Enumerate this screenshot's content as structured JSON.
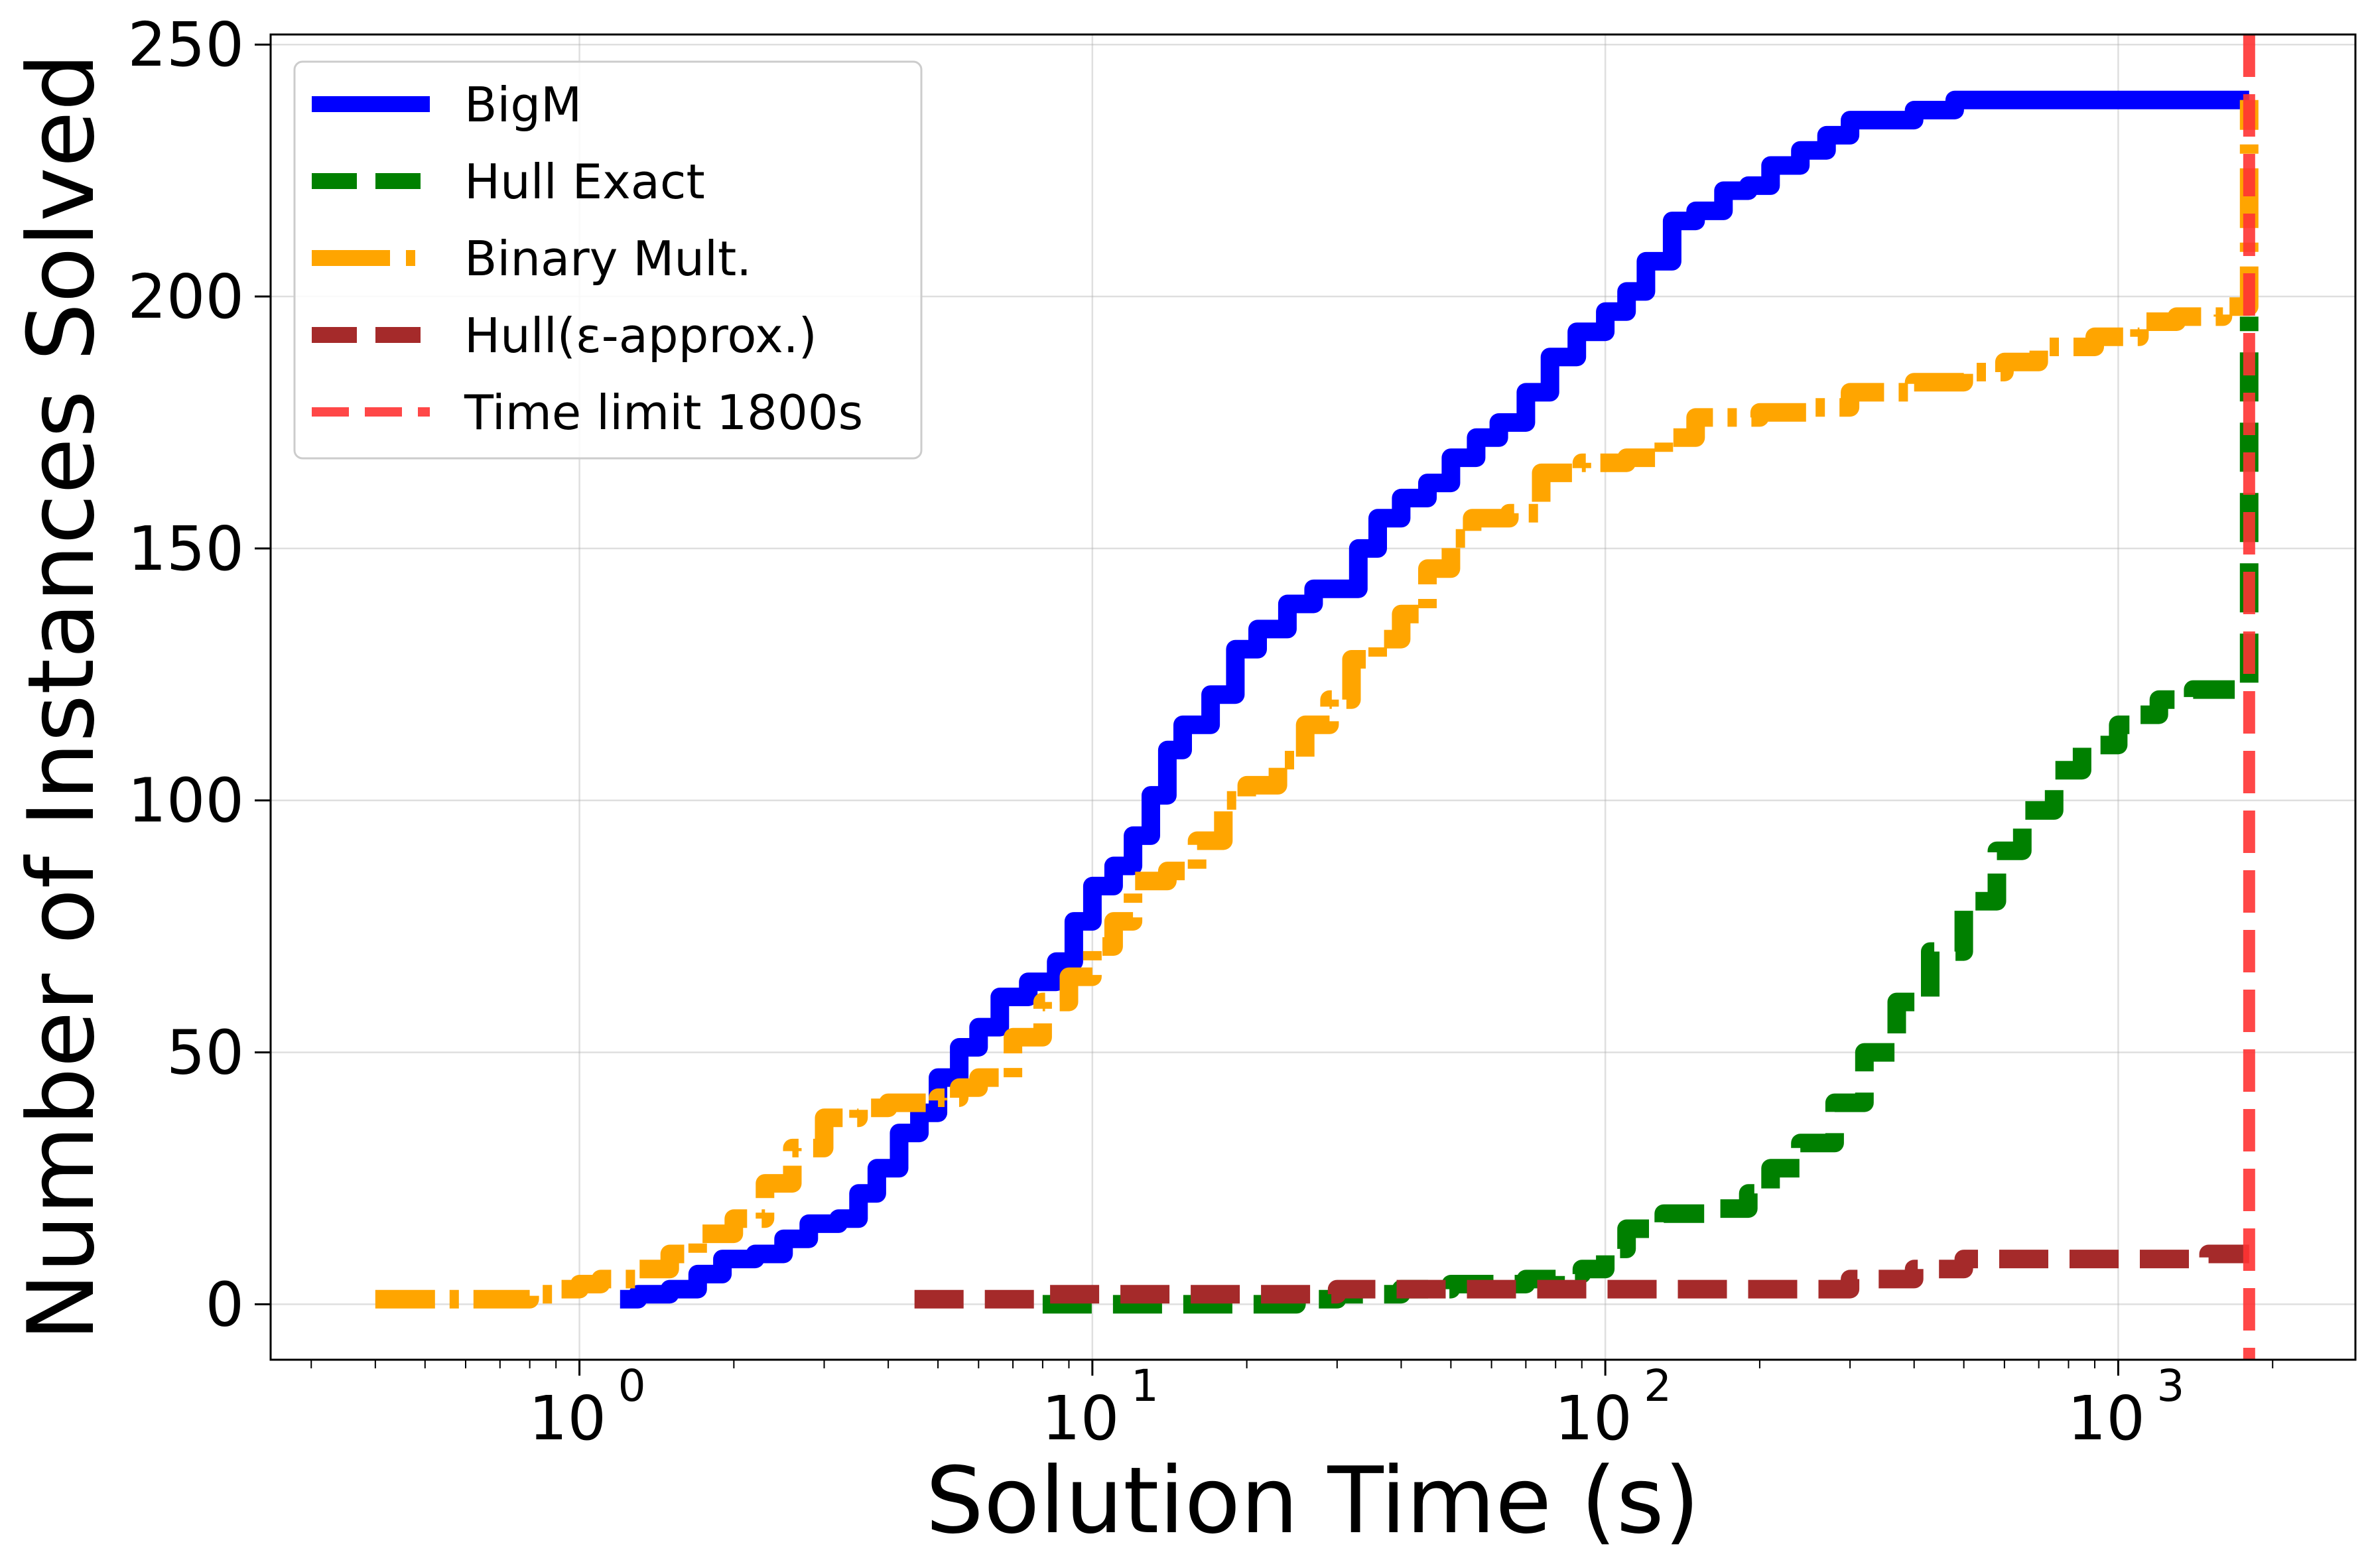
{
  "chart_data": {
    "type": "line",
    "title": "",
    "xlabel": "Solution Time (s)",
    "ylabel": "Number of Instances Solved",
    "xscale": "log",
    "xlim": [
      0.25,
      2900
    ],
    "ylim": [
      -11,
      252
    ],
    "grid": true,
    "legend_position": "top-left",
    "x_ticks": [
      {
        "value": 1,
        "base": "10",
        "exp": "0"
      },
      {
        "value": 10,
        "base": "10",
        "exp": "1"
      },
      {
        "value": 100,
        "base": "10",
        "exp": "2"
      },
      {
        "value": 1000,
        "base": "10",
        "exp": "3"
      }
    ],
    "y_ticks": [
      {
        "value": 0,
        "label": "0"
      },
      {
        "value": 50,
        "label": "50"
      },
      {
        "value": 100,
        "label": "100"
      },
      {
        "value": 150,
        "label": "150"
      },
      {
        "value": 200,
        "label": "200"
      },
      {
        "value": 250,
        "label": "250"
      }
    ],
    "series": [
      {
        "name": "BigM",
        "color": "#0000ff",
        "style": "solid",
        "points": [
          [
            1.2,
            1
          ],
          [
            1.3,
            2
          ],
          [
            1.5,
            3
          ],
          [
            1.7,
            6
          ],
          [
            1.9,
            9
          ],
          [
            2.2,
            10
          ],
          [
            2.5,
            13
          ],
          [
            2.8,
            16
          ],
          [
            3.2,
            17
          ],
          [
            3.5,
            22
          ],
          [
            3.8,
            27
          ],
          [
            4.2,
            34
          ],
          [
            4.6,
            38
          ],
          [
            5.0,
            45
          ],
          [
            5.5,
            51
          ],
          [
            6.0,
            55
          ],
          [
            6.6,
            61
          ],
          [
            7.5,
            64
          ],
          [
            8.5,
            68
          ],
          [
            9.2,
            76
          ],
          [
            10,
            83
          ],
          [
            11,
            87
          ],
          [
            12,
            93
          ],
          [
            13,
            101
          ],
          [
            14,
            110
          ],
          [
            15,
            115
          ],
          [
            17,
            121
          ],
          [
            19,
            130
          ],
          [
            21,
            134
          ],
          [
            24,
            139
          ],
          [
            27,
            142
          ],
          [
            30,
            142
          ],
          [
            33,
            150
          ],
          [
            36,
            156
          ],
          [
            40,
            160
          ],
          [
            45,
            163
          ],
          [
            50,
            168
          ],
          [
            56,
            172
          ],
          [
            62,
            175
          ],
          [
            70,
            181
          ],
          [
            78,
            188
          ],
          [
            88,
            193
          ],
          [
            100,
            197
          ],
          [
            110,
            201
          ],
          [
            120,
            207
          ],
          [
            135,
            215
          ],
          [
            150,
            217
          ],
          [
            170,
            221
          ],
          [
            190,
            222
          ],
          [
            210,
            226
          ],
          [
            240,
            229
          ],
          [
            270,
            232
          ],
          [
            300,
            235
          ],
          [
            350,
            235
          ],
          [
            400,
            237
          ],
          [
            480,
            239
          ],
          [
            700,
            239
          ],
          [
            1000,
            239
          ],
          [
            1600,
            239
          ],
          [
            1800,
            239
          ]
        ]
      },
      {
        "name": "Hull Exact",
        "color": "#008000",
        "style": "dashed",
        "points": [
          [
            8,
            0
          ],
          [
            12,
            0
          ],
          [
            15,
            0
          ],
          [
            20,
            0
          ],
          [
            25,
            1
          ],
          [
            30,
            2
          ],
          [
            40,
            3
          ],
          [
            50,
            4
          ],
          [
            60,
            4
          ],
          [
            70,
            5
          ],
          [
            80,
            6
          ],
          [
            90,
            7
          ],
          [
            100,
            11
          ],
          [
            110,
            15
          ],
          [
            130,
            18
          ],
          [
            160,
            19
          ],
          [
            190,
            22
          ],
          [
            210,
            27
          ],
          [
            240,
            32
          ],
          [
            280,
            40
          ],
          [
            320,
            50
          ],
          [
            370,
            60
          ],
          [
            430,
            70
          ],
          [
            500,
            80
          ],
          [
            580,
            90
          ],
          [
            650,
            98
          ],
          [
            750,
            106
          ],
          [
            850,
            111
          ],
          [
            1000,
            115
          ],
          [
            1100,
            117
          ],
          [
            1200,
            120
          ],
          [
            1400,
            122
          ],
          [
            1700,
            122
          ],
          [
            1800,
            122
          ],
          [
            1800,
            196
          ]
        ]
      },
      {
        "name": "Binary Mult.",
        "color": "#ffa500",
        "style": "dashdot",
        "points": [
          [
            0.4,
            1
          ],
          [
            0.6,
            1
          ],
          [
            0.8,
            2
          ],
          [
            0.9,
            3
          ],
          [
            1.0,
            4
          ],
          [
            1.1,
            5
          ],
          [
            1.3,
            7
          ],
          [
            1.5,
            10
          ],
          [
            1.7,
            14
          ],
          [
            2.0,
            17
          ],
          [
            2.3,
            24
          ],
          [
            2.6,
            31
          ],
          [
            3.0,
            37
          ],
          [
            3.5,
            39
          ],
          [
            4.0,
            40
          ],
          [
            4.5,
            40
          ],
          [
            5.0,
            41
          ],
          [
            5.5,
            43
          ],
          [
            6.0,
            45
          ],
          [
            7.0,
            53
          ],
          [
            8.0,
            60
          ],
          [
            9.0,
            65
          ],
          [
            10,
            71
          ],
          [
            11,
            76
          ],
          [
            12,
            84
          ],
          [
            14,
            86
          ],
          [
            16,
            92
          ],
          [
            18,
            100
          ],
          [
            20,
            103
          ],
          [
            23,
            108
          ],
          [
            26,
            115
          ],
          [
            29,
            120
          ],
          [
            32,
            128
          ],
          [
            36,
            132
          ],
          [
            40,
            137
          ],
          [
            45,
            146
          ],
          [
            50,
            152
          ],
          [
            55,
            156
          ],
          [
            65,
            157
          ],
          [
            75,
            165
          ],
          [
            90,
            167
          ],
          [
            110,
            168
          ],
          [
            130,
            172
          ],
          [
            150,
            176
          ],
          [
            200,
            177
          ],
          [
            250,
            178
          ],
          [
            300,
            181
          ],
          [
            400,
            183
          ],
          [
            500,
            185
          ],
          [
            600,
            187
          ],
          [
            700,
            190
          ],
          [
            900,
            192
          ],
          [
            1100,
            195
          ],
          [
            1300,
            196
          ],
          [
            1600,
            198
          ],
          [
            1800,
            198
          ],
          [
            1800,
            239
          ]
        ]
      },
      {
        "name": "Hull(ε-approx.)",
        "color": "#a52a2a",
        "style": "dashed",
        "points": [
          [
            4.5,
            1
          ],
          [
            6,
            1
          ],
          [
            8,
            2
          ],
          [
            20,
            2
          ],
          [
            30,
            3
          ],
          [
            250,
            3
          ],
          [
            300,
            5
          ],
          [
            400,
            7
          ],
          [
            500,
            9
          ],
          [
            800,
            9
          ],
          [
            1200,
            9
          ],
          [
            1500,
            10
          ],
          [
            1800,
            10
          ]
        ]
      }
    ],
    "reference_lines": [
      {
        "name": "Time limit 1800s",
        "x": 1800,
        "color": "#ff3333",
        "style": "dashed"
      }
    ]
  }
}
